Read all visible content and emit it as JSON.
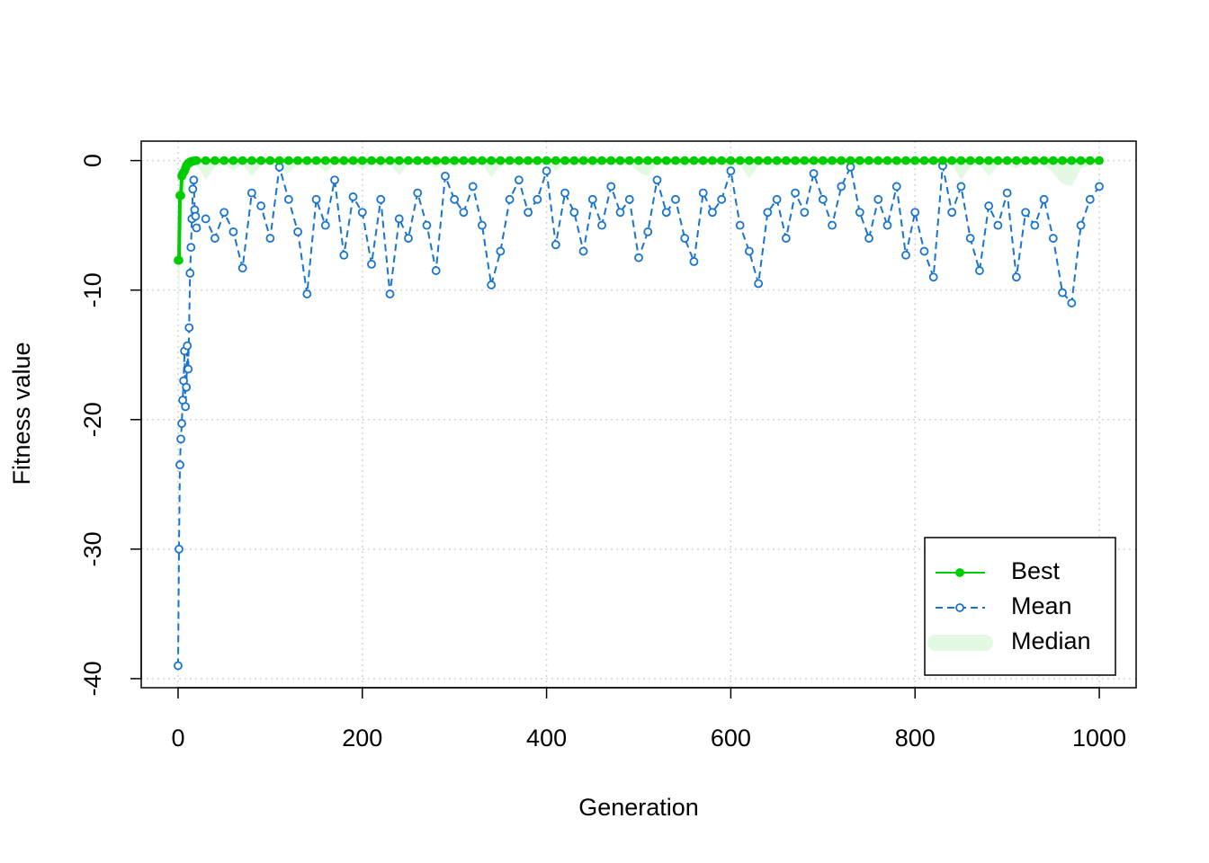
{
  "chart_data": {
    "type": "line",
    "x_label": "Generation",
    "y_label": "Fitness value",
    "x": [
      0,
      1,
      2,
      3,
      4,
      5,
      6,
      7,
      8,
      9,
      10,
      11,
      12,
      13,
      14,
      15,
      16,
      17,
      18,
      19,
      20,
      30,
      40,
      50,
      60,
      70,
      80,
      90,
      100,
      110,
      120,
      130,
      140,
      150,
      160,
      170,
      180,
      190,
      200,
      210,
      220,
      230,
      240,
      250,
      260,
      270,
      280,
      290,
      300,
      310,
      320,
      330,
      340,
      350,
      360,
      370,
      380,
      390,
      400,
      410,
      420,
      430,
      440,
      450,
      460,
      470,
      480,
      490,
      500,
      510,
      520,
      530,
      540,
      550,
      560,
      570,
      580,
      590,
      600,
      610,
      620,
      630,
      640,
      650,
      660,
      670,
      680,
      690,
      700,
      710,
      720,
      730,
      740,
      750,
      760,
      770,
      780,
      790,
      800,
      810,
      820,
      830,
      840,
      850,
      860,
      870,
      880,
      890,
      900,
      910,
      920,
      930,
      940,
      950,
      960,
      970,
      980,
      990,
      1000
    ],
    "series": [
      {
        "name": "Best",
        "color": "#00cd00",
        "style": "solid",
        "marker": "filled",
        "values": [
          -7.7,
          -7.7,
          -2.7,
          -2.7,
          -1.2,
          -1,
          -0.9,
          -0.8,
          -0.6,
          -0.4,
          -0.3,
          -0.2,
          -0.2,
          -0.1,
          -0.1,
          -0.05,
          -0.05,
          -0.02,
          -0.02,
          0,
          0,
          0,
          0,
          0,
          0,
          0,
          0,
          0,
          0,
          0,
          0,
          0,
          0,
          0,
          0,
          0,
          0,
          0,
          0,
          0,
          0,
          0,
          0,
          0,
          0,
          0,
          0,
          0,
          0,
          0,
          0,
          0,
          0,
          0,
          0,
          0,
          0,
          0,
          0,
          0,
          0,
          0,
          0,
          0,
          0,
          0,
          0,
          0,
          0,
          0,
          0,
          0,
          0,
          0,
          0,
          0,
          0,
          0,
          0,
          0,
          0,
          0,
          0,
          0,
          0,
          0,
          0,
          0,
          0,
          0,
          0,
          0,
          0,
          0,
          0,
          0,
          0,
          0,
          0,
          0,
          0,
          0,
          0,
          0,
          0,
          0,
          0,
          0,
          0,
          0,
          0,
          0,
          0,
          0,
          0,
          0,
          0,
          0,
          0
        ]
      },
      {
        "name": "Mean",
        "color": "#1874cd",
        "style": "dashed",
        "marker": "open",
        "values": [
          -39,
          -30,
          -23.5,
          -21.5,
          -20.3,
          -18.5,
          -17,
          -14.7,
          -19,
          -17.5,
          -14.3,
          -16.1,
          -12.9,
          -8.7,
          -6.7,
          -4.5,
          -2.2,
          -1.5,
          -3.8,
          -4.3,
          -5.2,
          -4.5,
          -6,
          -4,
          -5.5,
          -8.3,
          -2.5,
          -3.5,
          -6,
          -0.5,
          -3,
          -5.5,
          -10.3,
          -3,
          -5,
          -1.5,
          -7.3,
          -2.8,
          -4,
          -8,
          -3,
          -10.3,
          -4.5,
          -6,
          -2.5,
          -5,
          -8.5,
          -1.2,
          -3,
          -4,
          -2,
          -5,
          -9.6,
          -7,
          -3,
          -1.5,
          -4,
          -3,
          -0.8,
          -6.5,
          -2.5,
          -4,
          -7,
          -3,
          -5,
          -2,
          -4,
          -3,
          -7.5,
          -5.5,
          -1.5,
          -4,
          -3,
          -6,
          -7.8,
          -2.5,
          -4,
          -3,
          -0.8,
          -5,
          -7,
          -9.5,
          -4,
          -3,
          -6,
          -2.5,
          -4,
          -1,
          -3,
          -5,
          -2,
          -0.5,
          -4,
          -6,
          -3,
          -5,
          -2,
          -7.3,
          -4,
          -7,
          -9,
          -0.4,
          -4,
          -2,
          -6,
          -8.5,
          -3.5,
          -5,
          -2.5,
          -9,
          -4,
          -5,
          -3,
          -6,
          -10.2,
          -11,
          -5,
          -3,
          -2
        ]
      },
      {
        "name": "Median",
        "color": "#e3f9e3",
        "style": "area",
        "values": [
          -12,
          -11,
          -8,
          -6,
          -5,
          -4,
          -3,
          -2.5,
          -2,
          -1.5,
          -1.2,
          -1,
          -0.8,
          -0.7,
          -0.6,
          -0.5,
          -0.4,
          -0.4,
          -0.3,
          -0.3,
          -0.3,
          -1.5,
          -0.5,
          -0.3,
          -0.8,
          -0.3,
          -1.2,
          -0.4,
          -0.3,
          -0.6,
          -1,
          -0.3,
          -0.5,
          -0.3,
          -0.9,
          -0.3,
          -0.4,
          -0.3,
          -0.7,
          -0.3,
          -0.5,
          -0.3,
          -1.1,
          -0.3,
          -0.4,
          -0.3,
          -0.6,
          -0.3,
          -0.5,
          -0.3,
          -0.4,
          -0.3,
          -1.3,
          -0.4,
          -0.3,
          -0.5,
          -0.3,
          -0.4,
          -0.3,
          -0.8,
          -0.3,
          -0.4,
          -0.3,
          -0.5,
          -0.3,
          -0.3,
          -0.4,
          -0.3,
          -0.9,
          -1.2,
          -0.3,
          -0.4,
          -0.3,
          -0.5,
          -0.3,
          -0.4,
          -0.3,
          -0.3,
          -0.6,
          -0.3,
          -1.4,
          -0.4,
          -0.3,
          -0.5,
          -0.3,
          -0.4,
          -0.3,
          -0.3,
          -0.5,
          -0.3,
          -0.4,
          -0.3,
          -0.6,
          -0.3,
          -0.4,
          -0.3,
          -0.5,
          -0.3,
          -0.4,
          -0.3,
          -0.3,
          -0.4,
          -0.3,
          -1.5,
          -0.5,
          -0.3,
          -1.2,
          -0.4,
          -0.3,
          -0.6,
          -0.3,
          -0.4,
          -0.3,
          -1,
          -1.8,
          -2,
          -0.6,
          -0.4,
          -0.3
        ]
      }
    ],
    "xlim": [
      -40,
      1040
    ],
    "ylim": [
      -40.7,
      1.5
    ],
    "xticks": [
      0,
      200,
      400,
      600,
      800,
      1000
    ],
    "yticks": [
      -40,
      -30,
      -20,
      -10,
      0
    ],
    "grid": true,
    "legend": "bottomright"
  }
}
